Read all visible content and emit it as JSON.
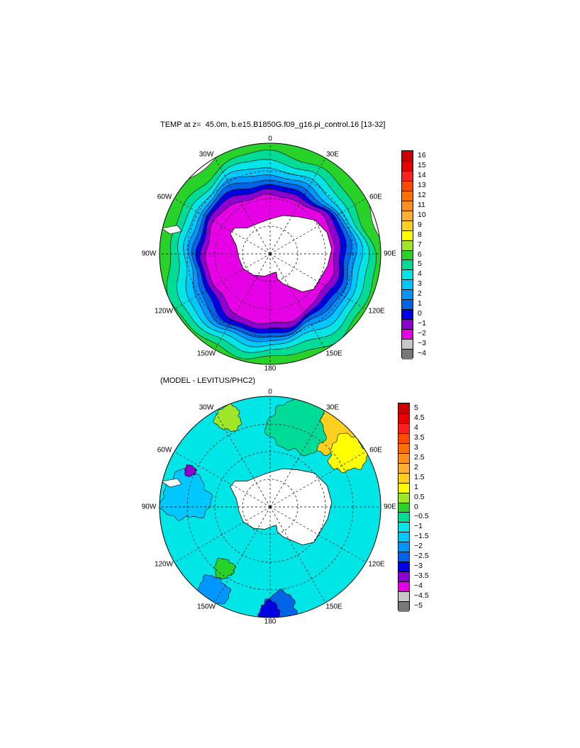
{
  "maps": [
    {
      "title": "TEMP at z=  45.0m, b.e15.B1850G.f09_g16.pi_control.16 [13-32]",
      "lon_labels": [
        "0",
        "30E",
        "60E",
        "90E",
        "120E",
        "150E",
        "180",
        "150W",
        "120W",
        "90W",
        "60W",
        "30W"
      ],
      "colorbar": {
        "labels": [
          "16",
          "15",
          "14",
          "13",
          "12",
          "11",
          "10",
          "9",
          "8",
          "7",
          "6",
          "5",
          "4",
          "3",
          "2",
          "1",
          "0",
          "−1",
          "−2",
          "−3",
          "−4"
        ],
        "colors": [
          "#c80000",
          "#e60000",
          "#ff2020",
          "#ff4a00",
          "#ff7000",
          "#ff9020",
          "#ffb030",
          "#ffd020",
          "#ffff00",
          "#a0e628",
          "#28d228",
          "#00dc96",
          "#00e6e6",
          "#00c8ff",
          "#0096ff",
          "#0064e6",
          "#0000e6",
          "#8c00d2",
          "#e600e6",
          "#c8c8c8",
          "#787878"
        ]
      },
      "field": {
        "rings": [
          {
            "color": "#28d228"
          },
          {
            "color": "#00dc96"
          },
          {
            "color": "#00e6e6"
          },
          {
            "color": "#00c8ff"
          },
          {
            "color": "#0096ff"
          },
          {
            "color": "#0064e6"
          },
          {
            "color": "#0000e6"
          },
          {
            "color": "#8c00d2"
          },
          {
            "color": "#e600e6"
          }
        ]
      }
    },
    {
      "title": "(MODEL - LEVITUS/PHC2)",
      "lon_labels": [
        "0",
        "30E",
        "60E",
        "90E",
        "120E",
        "150E",
        "180",
        "150W",
        "120W",
        "90W",
        "60W",
        "30W"
      ],
      "colorbar": {
        "labels": [
          "5",
          "4.5",
          "4",
          "3.5",
          "3",
          "2.5",
          "2",
          "1.5",
          "1",
          "0.5",
          "0",
          "−0.5",
          "−1",
          "−1.5",
          "−2",
          "−2.5",
          "−3",
          "−3.5",
          "−4",
          "−4.5",
          "−5"
        ],
        "colors": [
          "#c80000",
          "#e60000",
          "#ff2020",
          "#ff4a00",
          "#ff7000",
          "#ff9020",
          "#ffb030",
          "#ffd020",
          "#ffff00",
          "#a0e628",
          "#28d228",
          "#00dc96",
          "#00e6e6",
          "#00c8ff",
          "#0096ff",
          "#0064e6",
          "#0000e6",
          "#8c00d2",
          "#e600e6",
          "#c8c8c8",
          "#787878"
        ]
      },
      "field": {
        "background": "#00e6e6",
        "patches": [
          {
            "color": "#ffd020"
          },
          {
            "color": "#ffff00"
          },
          {
            "color": "#a0e628"
          },
          {
            "color": "#28d228"
          },
          {
            "color": "#00dc96"
          },
          {
            "color": "#00c8ff"
          },
          {
            "color": "#0096ff"
          },
          {
            "color": "#0064e6"
          },
          {
            "color": "#0000e6"
          },
          {
            "color": "#8c00d2"
          }
        ]
      }
    }
  ],
  "land_color": "#ffffff",
  "graticule_style": "dashed"
}
